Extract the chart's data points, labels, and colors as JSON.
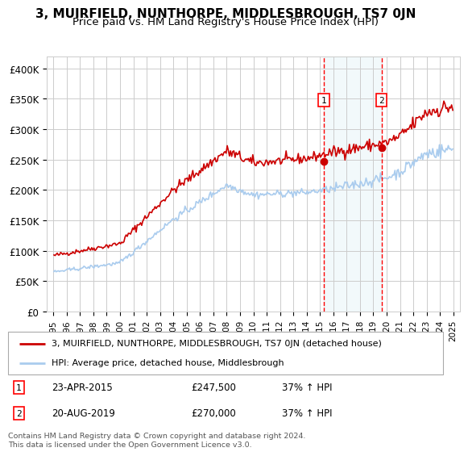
{
  "title": "3, MUIRFIELD, NUNTHORPE, MIDDLESBROUGH, TS7 0JN",
  "subtitle": "Price paid vs. HM Land Registry's House Price Index (HPI)",
  "ylim": [
    0,
    420000
  ],
  "yticks": [
    0,
    50000,
    100000,
    150000,
    200000,
    250000,
    300000,
    350000,
    400000
  ],
  "ytick_labels": [
    "£0",
    "£50K",
    "£100K",
    "£150K",
    "£200K",
    "£250K",
    "£300K",
    "£350K",
    "£400K"
  ],
  "background_color": "#ffffff",
  "grid_color": "#cccccc",
  "red_line_color": "#cc0000",
  "blue_line_color": "#aaccee",
  "transaction1": {
    "date": "23-APR-2015",
    "price": 247500,
    "label": "1",
    "hpi_pct": "37%",
    "direction": "↑"
  },
  "transaction2": {
    "date": "20-AUG-2019",
    "price": 270000,
    "label": "2",
    "hpi_pct": "37%",
    "direction": "↑"
  },
  "legend_line1": "3, MUIRFIELD, NUNTHORPE, MIDDLESBROUGH, TS7 0JN (detached house)",
  "legend_line2": "HPI: Average price, detached house, Middlesbrough",
  "footnote": "Contains HM Land Registry data © Crown copyright and database right 2024.\nThis data is licensed under the Open Government Licence v3.0.",
  "title_fontsize": 11,
  "subtitle_fontsize": 9.5,
  "tick_fontsize": 8.5,
  "legend_fontsize": 8
}
